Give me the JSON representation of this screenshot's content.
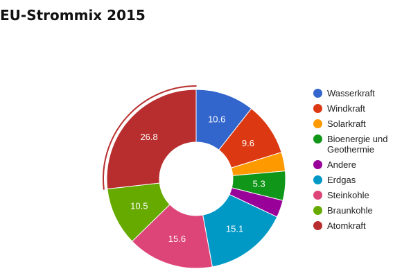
{
  "chart_data": {
    "type": "pie",
    "variant": "donut",
    "title": "EU-Strommix 2015",
    "legend_position": "right",
    "slices": [
      {
        "name": "Wasserkraft",
        "value": 10.6,
        "label": "10.6",
        "color": "#3366cc"
      },
      {
        "name": "Windkraft",
        "value": 9.6,
        "label": "9.6",
        "color": "#dc3912"
      },
      {
        "name": "Solarkraft",
        "value": 3.4,
        "label": "",
        "color": "#ff9900"
      },
      {
        "name": "Bioenergie und Geothermie",
        "value": 5.3,
        "label": "5.3",
        "color": "#109618"
      },
      {
        "name": "Andere",
        "value": 3.1,
        "label": "",
        "color": "#990099"
      },
      {
        "name": "Erdgas",
        "value": 15.1,
        "label": "15.1",
        "color": "#0099c6"
      },
      {
        "name": "Steinkohle",
        "value": 15.6,
        "label": "15.6",
        "color": "#dd4477"
      },
      {
        "name": "Braunkohle",
        "value": 10.5,
        "label": "10.5",
        "color": "#66aa00"
      },
      {
        "name": "Atomkraft",
        "value": 26.8,
        "label": "26.8",
        "color": "#b82e2e"
      }
    ],
    "highlighted_slice": "Atomkraft"
  }
}
